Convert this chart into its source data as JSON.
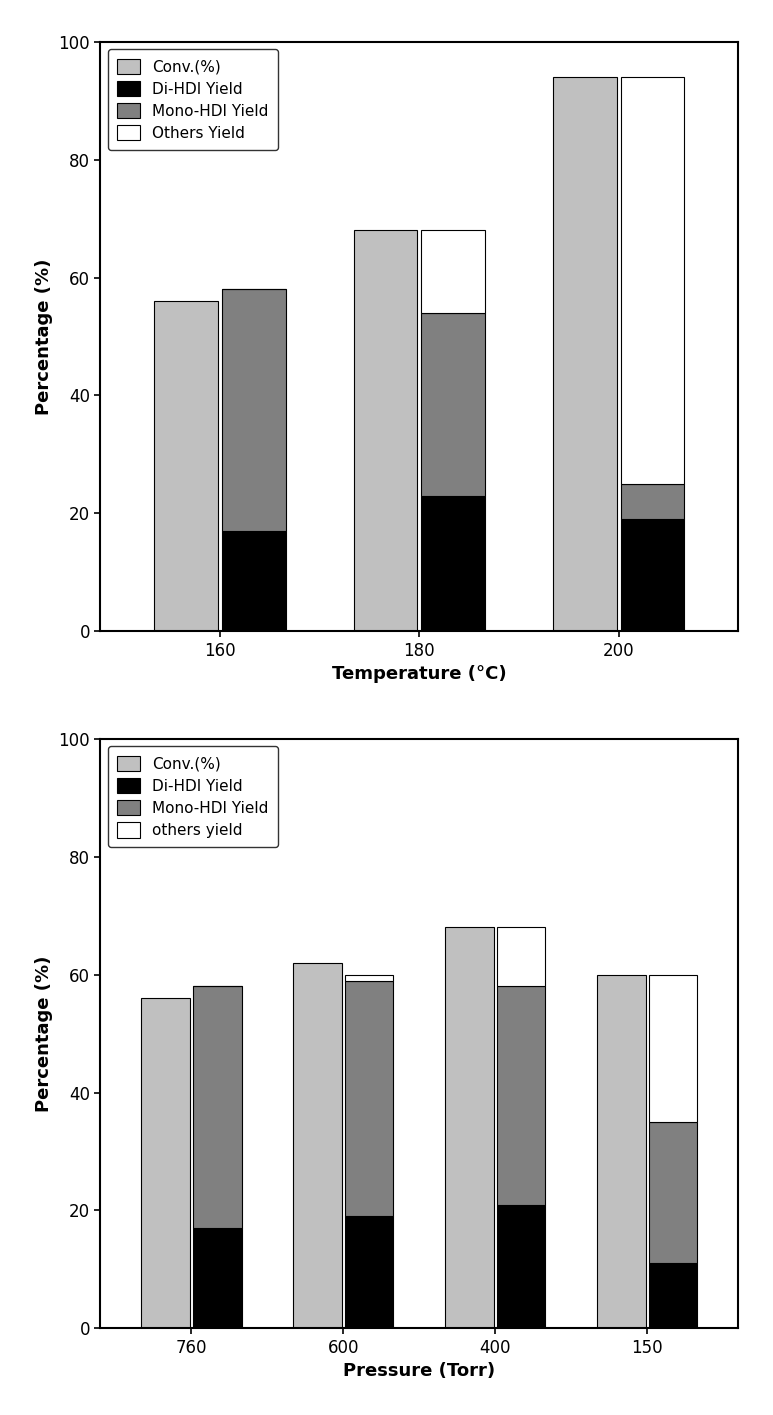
{
  "top": {
    "categories": [
      "160",
      "180",
      "200"
    ],
    "xlabel": "Temperature (°C)",
    "ylabel": "Percentage (%)",
    "conv": [
      56,
      68,
      94
    ],
    "di_hdi": [
      17,
      23,
      19
    ],
    "mono_hdi": [
      41,
      31,
      6
    ],
    "others": [
      0,
      14,
      69
    ],
    "legend_labels": [
      "Conv.(%)",
      "Di-HDI Yield",
      "Mono-HDI Yield",
      "Others Yield"
    ]
  },
  "bottom": {
    "categories": [
      "760",
      "600",
      "400",
      "150"
    ],
    "xlabel": "Pressure (Torr)",
    "ylabel": "Percentage (%)",
    "conv": [
      56,
      62,
      68,
      60
    ],
    "di_hdi": [
      17,
      19,
      21,
      11
    ],
    "mono_hdi": [
      41,
      40,
      37,
      24
    ],
    "others": [
      0,
      1,
      10,
      25
    ],
    "legend_labels": [
      "Conv.(%)",
      "Di-HDI Yield",
      "Mono-HDI Yield",
      "others yield"
    ]
  },
  "colors": {
    "conv": "#c0c0c0",
    "di_hdi": "#000000",
    "mono_hdi": "#808080",
    "others": "#ffffff"
  },
  "ylim": [
    0,
    100
  ],
  "yticks": [
    0,
    20,
    40,
    60,
    80,
    100
  ],
  "bar_width": 0.32,
  "font_size_label": 13,
  "font_size_tick": 12,
  "font_size_legend": 11
}
